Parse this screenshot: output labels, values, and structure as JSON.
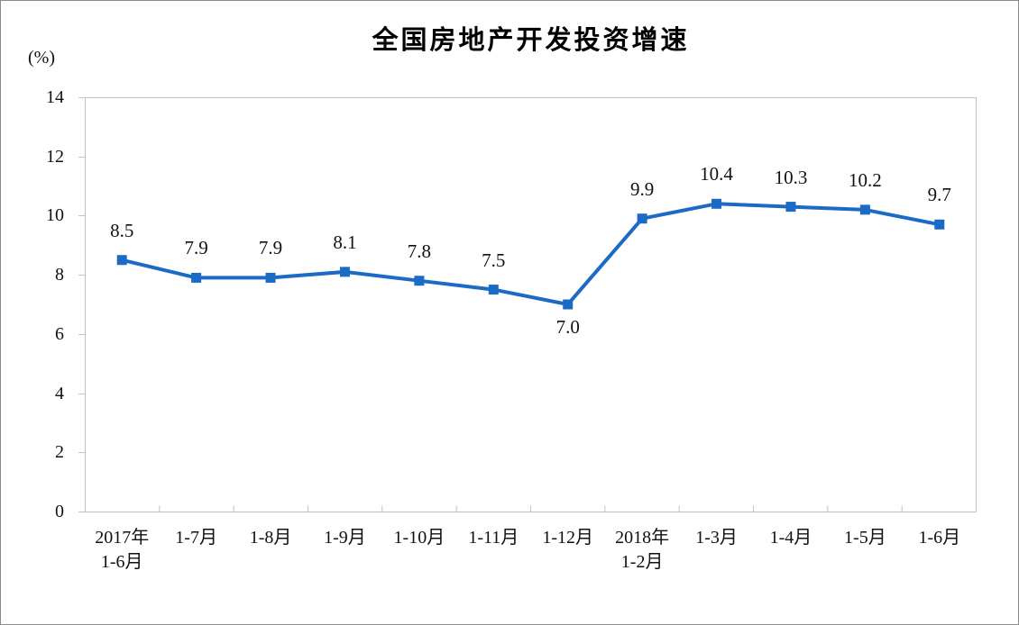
{
  "chart_data": {
    "type": "line",
    "title": "全国房地产开发投资增速",
    "unit_label": "(%)",
    "xlabel": "",
    "ylabel": "(%)",
    "categories": [
      "2017年\n1-6月",
      "1-7月",
      "1-8月",
      "1-9月",
      "1-10月",
      "1-11月",
      "1-12月",
      "2018年\n1-2月",
      "1-3月",
      "1-4月",
      "1-5月",
      "1-6月"
    ],
    "values": [
      8.5,
      7.9,
      7.9,
      8.1,
      7.8,
      7.5,
      7.0,
      9.9,
      10.4,
      10.3,
      10.2,
      9.7
    ],
    "data_labels": [
      "8.5",
      "7.9",
      "7.9",
      "8.1",
      "7.8",
      "7.5",
      "7.0",
      "9.9",
      "10.4",
      "10.3",
      "10.2",
      "9.7"
    ],
    "label_below_indices": [
      6
    ],
    "y_ticks": [
      0,
      2,
      4,
      6,
      8,
      10,
      12,
      14
    ],
    "ylim": [
      0,
      14
    ],
    "grid": false,
    "legend_position": "none",
    "marker": "square",
    "line_color": "#1b6ac6",
    "axis_color": "#c2c2c2",
    "text_color": "#111111"
  }
}
